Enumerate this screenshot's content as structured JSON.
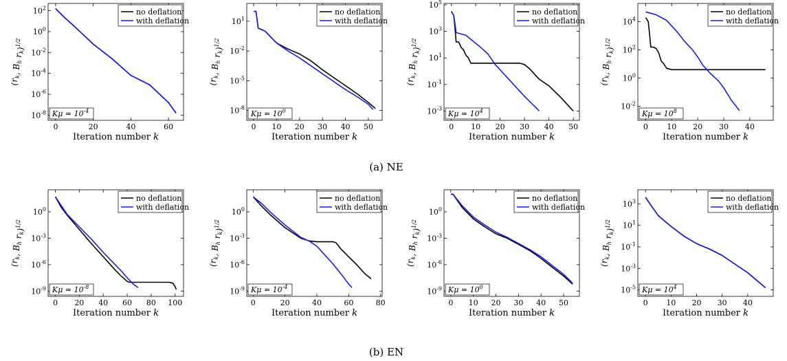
{
  "figure": {
    "captions": [
      "(a) NE",
      "(b) EN"
    ]
  },
  "chart_data": [
    {
      "type": "line",
      "row": 0,
      "col": 0,
      "xlabel": "Iteration number k",
      "ylabel": "(r_k, B_h r_k)^{1/2}",
      "log_y": true,
      "xlim": [
        -4,
        68
      ],
      "ylim_exp": [
        -8.5,
        2.7
      ],
      "x_ticks": [
        "0",
        "20",
        "40",
        "60"
      ],
      "y_ticks": [
        {
          "e": 2,
          "t": "10^2"
        },
        {
          "e": 0,
          "t": "10^0"
        },
        {
          "e": -2,
          "t": "10^-2"
        },
        {
          "e": -4,
          "t": "10^-4"
        },
        {
          "e": -6,
          "t": "10^-6"
        },
        {
          "e": -8,
          "t": "10^-8"
        }
      ],
      "legend": [
        "no deflation",
        "with deflation"
      ],
      "annotation": "Kμ = 10^-4",
      "series": [
        {
          "name": "no deflation",
          "color": "#000000",
          "x": [
            0,
            5,
            10,
            20,
            30,
            40,
            50,
            60,
            64
          ],
          "y_exp": [
            2.2,
            1.3,
            0.5,
            -1.2,
            -2.6,
            -4.2,
            -5.1,
            -6.8,
            -7.8
          ]
        },
        {
          "name": "with deflation",
          "color": "#1a1ae6",
          "x": [
            0,
            5,
            10,
            20,
            30,
            40,
            50,
            60,
            64
          ],
          "y_exp": [
            2.2,
            1.3,
            0.5,
            -1.2,
            -2.6,
            -4.2,
            -5.1,
            -6.8,
            -7.8
          ]
        }
      ]
    },
    {
      "type": "line",
      "row": 0,
      "col": 1,
      "xlabel": "Iteration number k",
      "ylabel": "(r_k, B_h r_k)^{1/2}",
      "log_y": true,
      "xlim": [
        -3,
        56
      ],
      "ylim_exp": [
        -9,
        2.8
      ],
      "x_ticks": [
        "0",
        "10",
        "20",
        "30",
        "40",
        "50"
      ],
      "y_ticks": [
        {
          "e": 1,
          "t": "10^1"
        },
        {
          "e": -2,
          "t": "10^-2"
        },
        {
          "e": -5,
          "t": "10^-5"
        },
        {
          "e": -8,
          "t": "10^-8"
        }
      ],
      "legend": [
        "no deflation",
        "with deflation"
      ],
      "annotation": "Kμ = 10^0",
      "series": [
        {
          "name": "no deflation",
          "color": "#000000",
          "x": [
            0,
            1,
            2,
            5,
            10,
            15,
            20,
            25,
            30,
            35,
            40,
            45,
            50,
            53
          ],
          "y_exp": [
            2.0,
            2.0,
            0.3,
            0,
            -1.2,
            -1.8,
            -2.3,
            -3.0,
            -3.9,
            -4.7,
            -5.5,
            -6.3,
            -7.2,
            -7.8
          ]
        },
        {
          "name": "with deflation",
          "color": "#1a1ae6",
          "x": [
            0,
            1,
            2,
            5,
            10,
            15,
            20,
            25,
            30,
            35,
            40,
            45,
            50,
            52
          ],
          "y_exp": [
            2.0,
            2.0,
            0.3,
            0,
            -1.2,
            -2.0,
            -2.7,
            -3.5,
            -4.3,
            -5.1,
            -5.9,
            -6.6,
            -7.4,
            -7.9
          ]
        }
      ]
    },
    {
      "type": "line",
      "row": 0,
      "col": 2,
      "xlabel": "Iteration number k",
      "ylabel": "(r_k, B_h r_k)^{1/2}",
      "log_y": true,
      "xlim": [
        -3,
        52.5
      ],
      "ylim_exp": [
        -3.7,
        5.1
      ],
      "x_ticks": [
        "0",
        "10",
        "20",
        "30",
        "40",
        "50"
      ],
      "y_ticks": [
        {
          "e": 5,
          "t": "10^5"
        },
        {
          "e": 3,
          "t": "10^3"
        },
        {
          "e": 1,
          "t": "10^1"
        },
        {
          "e": -1,
          "t": "10^-1"
        },
        {
          "e": -3,
          "t": "10^-3"
        }
      ],
      "legend": [
        "no deflation",
        "with deflation"
      ],
      "annotation": "Kμ = 10^4",
      "series": [
        {
          "name": "no deflation",
          "color": "#000000",
          "x": [
            0,
            1,
            2,
            3,
            4,
            5,
            6,
            7,
            8,
            10,
            15,
            20,
            25,
            28,
            30,
            32,
            34,
            36,
            40,
            45,
            48,
            50
          ],
          "y_exp": [
            4.5,
            4.2,
            2.2,
            2.2,
            1.8,
            1.6,
            1.2,
            1.0,
            0.6,
            0.6,
            0.6,
            0.6,
            0.6,
            0.6,
            0.5,
            0.2,
            -0.2,
            -0.6,
            -1.1,
            -2.0,
            -2.6,
            -3.0
          ]
        },
        {
          "name": "with deflation",
          "color": "#1a1ae6",
          "x": [
            0,
            1,
            2,
            4,
            6,
            8,
            10,
            12,
            15,
            18,
            20,
            25,
            30,
            35,
            36
          ],
          "y_exp": [
            4.5,
            4.2,
            2.9,
            2.8,
            2.7,
            2.4,
            2.1,
            1.8,
            1.3,
            0.5,
            0.1,
            -0.9,
            -1.9,
            -2.8,
            -3.0
          ]
        }
      ]
    },
    {
      "type": "line",
      "row": 0,
      "col": 3,
      "xlabel": "Iteration number k",
      "ylabel": "(r_k, B_h r_k)^{1/2}",
      "log_y": true,
      "xlim": [
        -3,
        49
      ],
      "ylim_exp": [
        -3.0,
        5.3
      ],
      "x_ticks": [
        "0",
        "10",
        "20",
        "30",
        "40"
      ],
      "y_ticks": [
        {
          "e": 4,
          "t": "10^4"
        },
        {
          "e": 2,
          "t": "10^2"
        },
        {
          "e": 0,
          "t": "10^0"
        },
        {
          "e": -2,
          "t": "10^-2"
        }
      ],
      "legend": [
        "no deflation",
        "with deflation"
      ],
      "annotation": "Kμ = 10^8",
      "series": [
        {
          "name": "no deflation",
          "color": "#000000",
          "x": [
            0,
            1,
            2,
            3,
            4,
            5,
            6,
            7,
            8,
            10,
            20,
            30,
            40,
            46
          ],
          "y_exp": [
            4.3,
            4.0,
            2.2,
            2.2,
            2.1,
            1.8,
            1.2,
            1.0,
            0.7,
            0.6,
            0.6,
            0.6,
            0.6,
            0.6
          ]
        },
        {
          "name": "with deflation",
          "color": "#1a1ae6",
          "x": [
            0,
            2,
            4,
            6,
            8,
            10,
            12,
            15,
            18,
            20,
            22,
            25,
            28,
            30,
            33,
            36
          ],
          "y_exp": [
            4.7,
            4.6,
            4.5,
            4.3,
            4.1,
            3.7,
            3.3,
            2.6,
            2.0,
            1.5,
            0.9,
            0.3,
            -0.2,
            -0.7,
            -1.6,
            -2.3
          ]
        }
      ]
    },
    {
      "type": "line",
      "row": 1,
      "col": 0,
      "xlabel": "Iteration number k",
      "ylabel": "(r_k, B_h r_k)^{1/2}",
      "log_y": true,
      "xlim": [
        -6,
        107
      ],
      "ylim_exp": [
        -9.6,
        2.5
      ],
      "x_ticks": [
        "0",
        "20",
        "40",
        "60",
        "80",
        "100"
      ],
      "y_ticks": [
        {
          "e": 0,
          "t": "10^0"
        },
        {
          "e": -3,
          "t": "10^-3"
        },
        {
          "e": -6,
          "t": "10^-6"
        },
        {
          "e": -9,
          "t": "10^-9"
        }
      ],
      "legend": [
        "no deflation",
        "with deflation"
      ],
      "annotation": "Kμ = 10^-8",
      "series": [
        {
          "name": "no deflation",
          "color": "#000000",
          "x": [
            0,
            5,
            10,
            20,
            30,
            40,
            50,
            55,
            60,
            62,
            65,
            70,
            80,
            90,
            95,
            98,
            100,
            101
          ],
          "y_exp": [
            1.7,
            0.5,
            -0.4,
            -2.0,
            -3.6,
            -5.1,
            -6.6,
            -7.3,
            -7.9,
            -8.0,
            -8.0,
            -8.0,
            -8.0,
            -8.0,
            -8.0,
            -8.1,
            -8.5,
            -8.8
          ]
        },
        {
          "name": "with deflation",
          "color": "#1a1ae6",
          "x": [
            0,
            5,
            10,
            20,
            30,
            40,
            50,
            55,
            60,
            65,
            69
          ],
          "y_exp": [
            1.7,
            0.7,
            -0.3,
            -1.7,
            -3.1,
            -4.6,
            -6.0,
            -6.7,
            -7.5,
            -8.2,
            -8.6
          ]
        }
      ]
    },
    {
      "type": "line",
      "row": 1,
      "col": 1,
      "xlabel": "Iteration number k",
      "ylabel": "(r_k, B_h r_k)^{1/2}",
      "log_y": true,
      "xlim": [
        -4,
        81
      ],
      "ylim_exp": [
        -9.6,
        2.5
      ],
      "x_ticks": [
        "0",
        "20",
        "40",
        "60",
        "80"
      ],
      "y_ticks": [
        {
          "e": 0,
          "t": "10^0"
        },
        {
          "e": -3,
          "t": "10^-3"
        },
        {
          "e": -6,
          "t": "10^-6"
        },
        {
          "e": -9,
          "t": "10^-9"
        }
      ],
      "legend": [
        "no deflation",
        "with deflation"
      ],
      "annotation": "Kμ = 10^-4",
      "series": [
        {
          "name": "no deflation",
          "color": "#000000",
          "x": [
            0,
            5,
            10,
            20,
            30,
            35,
            40,
            45,
            50,
            52,
            55,
            60,
            65,
            70,
            74
          ],
          "y_exp": [
            1.7,
            0.7,
            -0.2,
            -1.8,
            -3.0,
            -3.3,
            -3.4,
            -3.4,
            -3.4,
            -3.5,
            -4.2,
            -5.1,
            -6.0,
            -7.0,
            -7.6
          ]
        },
        {
          "name": "with deflation",
          "color": "#1a1ae6",
          "x": [
            0,
            5,
            10,
            20,
            30,
            35,
            40,
            45,
            50,
            55,
            60,
            62
          ],
          "y_exp": [
            1.7,
            1.0,
            0.1,
            -1.5,
            -2.9,
            -3.3,
            -3.9,
            -4.9,
            -5.9,
            -7.0,
            -8.2,
            -8.6
          ]
        }
      ]
    },
    {
      "type": "line",
      "row": 1,
      "col": 2,
      "xlabel": "Iteration number k",
      "ylabel": "(r_k, B_h r_k)^{1/2}",
      "log_y": true,
      "xlim": [
        -3,
        57
      ],
      "ylim_exp": [
        -9.6,
        2.5
      ],
      "x_ticks": [
        "0",
        "10",
        "20",
        "30",
        "40",
        "50"
      ],
      "y_ticks": [
        {
          "e": 0,
          "t": "10^0"
        },
        {
          "e": -3,
          "t": "10^-3"
        },
        {
          "e": -6,
          "t": "10^-6"
        },
        {
          "e": -9,
          "t": "10^-9"
        }
      ],
      "legend": [
        "no deflation",
        "with deflation"
      ],
      "annotation": "Kμ = 10^0",
      "series": [
        {
          "name": "no deflation",
          "color": "#000000",
          "x": [
            0,
            1,
            5,
            10,
            15,
            20,
            25,
            30,
            35,
            40,
            45,
            50,
            54
          ],
          "y_exp": [
            2.0,
            2.0,
            0.5,
            -0.8,
            -1.7,
            -2.5,
            -3.0,
            -3.7,
            -4.4,
            -5.3,
            -6.3,
            -7.3,
            -8.2
          ]
        },
        {
          "name": "with deflation",
          "color": "#1a1ae6",
          "x": [
            0,
            1,
            5,
            10,
            15,
            20,
            25,
            30,
            35,
            40,
            45,
            50,
            54
          ],
          "y_exp": [
            2.0,
            2.0,
            0.7,
            -0.6,
            -1.5,
            -2.3,
            -2.9,
            -3.6,
            -4.3,
            -5.1,
            -6.1,
            -7.1,
            -8.1
          ]
        }
      ]
    },
    {
      "type": "line",
      "row": 1,
      "col": 3,
      "xlabel": "Iteration number k",
      "ylabel": "(r_k, B_h r_k)^{1/2}",
      "log_y": true,
      "xlim": [
        -3,
        50
      ],
      "ylim_exp": [
        -5.6,
        4.3
      ],
      "x_ticks": [
        "0",
        "10",
        "20",
        "30",
        "40"
      ],
      "y_ticks": [
        {
          "e": 3,
          "t": "10^3"
        },
        {
          "e": 1,
          "t": "10^1"
        },
        {
          "e": -1,
          "t": "10^-1"
        },
        {
          "e": -3,
          "t": "10^-3"
        },
        {
          "e": -5,
          "t": "10^-5"
        }
      ],
      "legend": [
        "no deflation",
        "with deflation"
      ],
      "annotation": "Kμ = 10^4",
      "series": [
        {
          "name": "no deflation",
          "color": "#000000",
          "x": [
            0,
            2,
            5,
            10,
            15,
            20,
            25,
            30,
            35,
            40,
            45,
            47
          ],
          "y_exp": [
            3.6,
            2.9,
            1.9,
            0.9,
            0.0,
            -0.7,
            -1.2,
            -1.8,
            -2.6,
            -3.4,
            -4.4,
            -4.8
          ]
        },
        {
          "name": "with deflation",
          "color": "#1a1ae6",
          "x": [
            0,
            2,
            5,
            10,
            15,
            20,
            25,
            30,
            35,
            40,
            45,
            47
          ],
          "y_exp": [
            3.6,
            2.9,
            1.9,
            0.9,
            0.0,
            -0.7,
            -1.2,
            -1.8,
            -2.6,
            -3.4,
            -4.4,
            -4.8
          ]
        }
      ]
    }
  ]
}
